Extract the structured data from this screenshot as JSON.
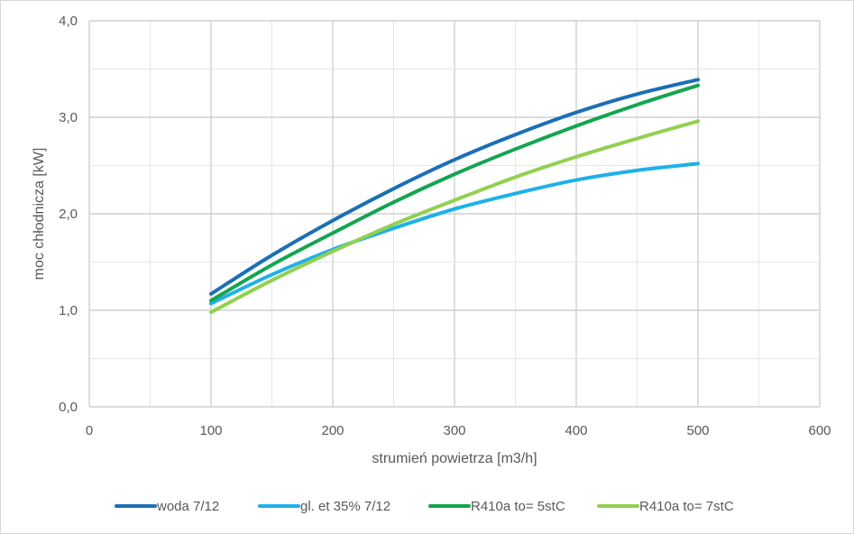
{
  "chart_data": {
    "type": "line",
    "title": "",
    "xlabel": "strumień powietrza [m3/h]",
    "ylabel": "moc chłodnicza [kW]",
    "xlim": [
      0,
      600
    ],
    "ylim": [
      0,
      4
    ],
    "x_ticks": [
      0,
      100,
      200,
      300,
      400,
      500,
      600
    ],
    "x_tick_labels": [
      "0",
      "100",
      "200",
      "300",
      "400",
      "500",
      "600"
    ],
    "y_ticks": [
      0,
      1,
      2,
      3,
      4
    ],
    "y_tick_labels": [
      "0,0",
      "1,0",
      "2,0",
      "3,0",
      "4,0"
    ],
    "grid": true,
    "legend_position": "bottom",
    "series": [
      {
        "name": "woda 7/12",
        "color": "#1b6fb5",
        "x": [
          100,
          150,
          200,
          250,
          300,
          350,
          400,
          450,
          500
        ],
        "y": [
          1.17,
          1.57,
          1.93,
          2.26,
          2.56,
          2.82,
          3.05,
          3.24,
          3.39
        ]
      },
      {
        "name": "gl. et 35% 7/12",
        "color": "#1fb0ea",
        "x": [
          100,
          150,
          200,
          250,
          300,
          350,
          400,
          450,
          500
        ],
        "y": [
          1.07,
          1.37,
          1.63,
          1.85,
          2.05,
          2.21,
          2.35,
          2.45,
          2.52
        ]
      },
      {
        "name": "R410a to= 5stC",
        "color": "#13a550",
        "x": [
          100,
          150,
          200,
          250,
          300,
          350,
          400,
          450,
          500
        ],
        "y": [
          1.1,
          1.47,
          1.8,
          2.12,
          2.41,
          2.67,
          2.91,
          3.13,
          3.33
        ]
      },
      {
        "name": "R410a to= 7stC",
        "color": "#92d050",
        "x": [
          100,
          150,
          200,
          250,
          300,
          350,
          400,
          450,
          500
        ],
        "y": [
          0.98,
          1.31,
          1.61,
          1.89,
          2.14,
          2.38,
          2.59,
          2.78,
          2.96
        ]
      }
    ]
  }
}
